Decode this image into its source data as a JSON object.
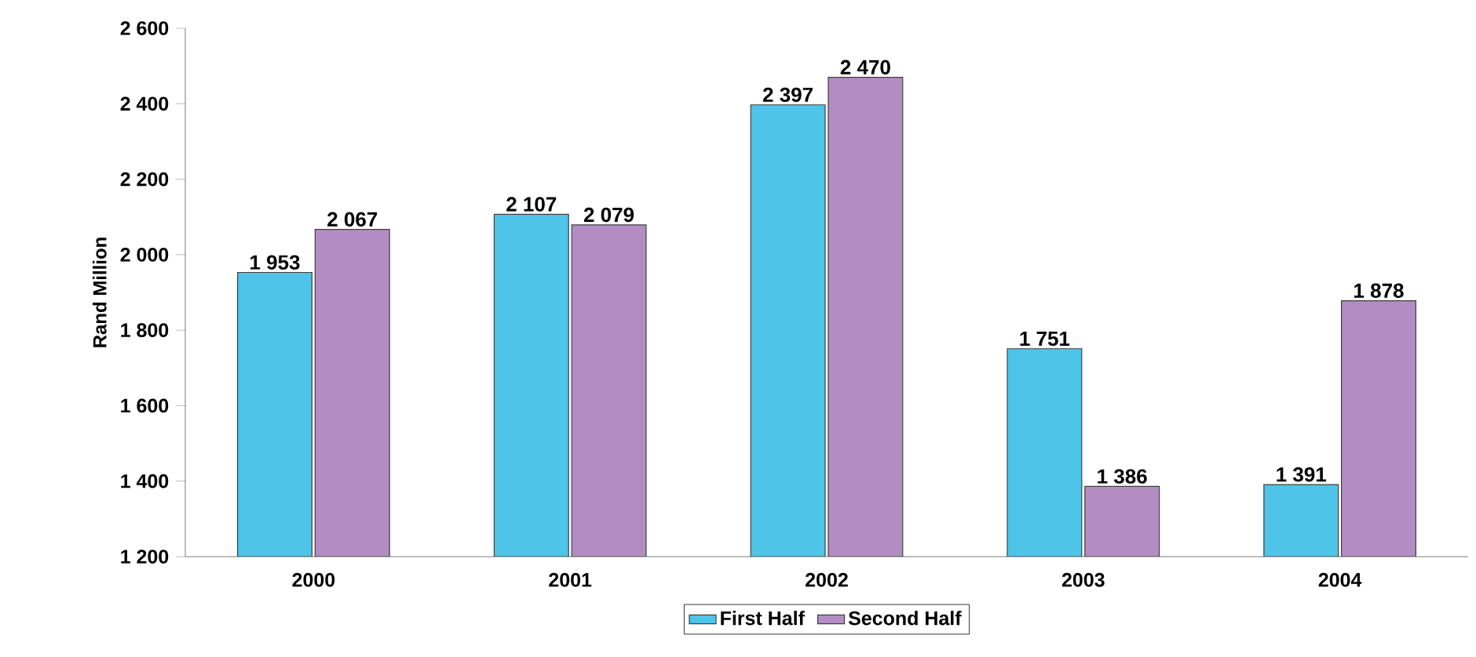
{
  "chart_data": {
    "type": "bar",
    "ylabel": "Rand Million",
    "categories": [
      "2000",
      "2001",
      "2002",
      "2003",
      "2004"
    ],
    "series": [
      {
        "name": "First Half",
        "color": "#4dc4e8",
        "values": [
          1953,
          2107,
          2397,
          1751,
          1391
        ],
        "value_labels": [
          "1 953",
          "2 107",
          "2 397",
          "1 751",
          "1 391"
        ]
      },
      {
        "name": "Second Half",
        "color": "#b48cc4",
        "values": [
          2067,
          2079,
          2470,
          1386,
          1878
        ],
        "value_labels": [
          "2 067",
          "2 079",
          "2 470",
          "1 386",
          "1 878"
        ]
      }
    ],
    "ylim": [
      1200,
      2600
    ],
    "yticks": [
      {
        "value": 1200,
        "label": "1 200"
      },
      {
        "value": 1400,
        "label": "1 400"
      },
      {
        "value": 1600,
        "label": "1 600"
      },
      {
        "value": 1800,
        "label": "1 800"
      },
      {
        "value": 2000,
        "label": "2 000"
      },
      {
        "value": 2200,
        "label": "2 200"
      },
      {
        "value": 2400,
        "label": "2 400"
      },
      {
        "value": 2600,
        "label": "2 600"
      }
    ],
    "legend": "bottom"
  }
}
